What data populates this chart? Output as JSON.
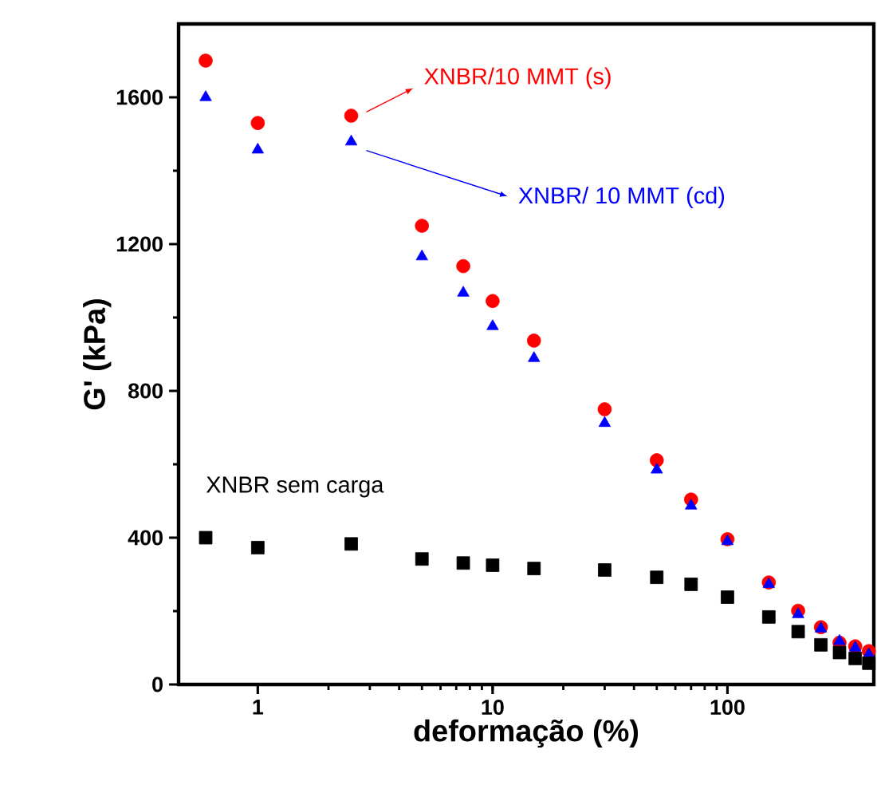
{
  "chart_data": {
    "type": "scatter",
    "xlabel": "deformação (%)",
    "ylabel": "G' (kPa)",
    "log": "x",
    "x": [
      0.6,
      1,
      2.5,
      5,
      7.5,
      10,
      15,
      30,
      50,
      70,
      100,
      150,
      200,
      250,
      300,
      350,
      400
    ],
    "series": [
      {
        "name": "XNBR/10 MMT (s)",
        "color": "#ff0000",
        "marker": "circle",
        "values": [
          1700,
          1530,
          1550,
          1250,
          1140,
          1045,
          937,
          750,
          611,
          504,
          396,
          278,
          201,
          156,
          114,
          104,
          91
        ]
      },
      {
        "name": "XNBR/ 10 MMT (cd)",
        "color": "#0000ff",
        "marker": "triangle",
        "values": [
          1600,
          1457,
          1479,
          1166,
          1067,
          976,
          889,
          712,
          585,
          487,
          390,
          273,
          191,
          152,
          118,
          100,
          82
        ]
      },
      {
        "name": "XNBR sem carga",
        "color": "#000000",
        "marker": "square",
        "values": [
          400,
          373,
          383,
          342,
          331,
          325,
          316,
          312,
          292,
          273,
          238,
          184,
          144,
          108,
          87,
          71,
          58
        ]
      }
    ],
    "xlim": [
      0.46,
      420
    ],
    "ylim": [
      0,
      1800
    ],
    "xticks": [
      1,
      10,
      100
    ],
    "yticks": [
      0,
      400,
      800,
      1200,
      1600
    ],
    "grid": false,
    "legend": "top right"
  }
}
